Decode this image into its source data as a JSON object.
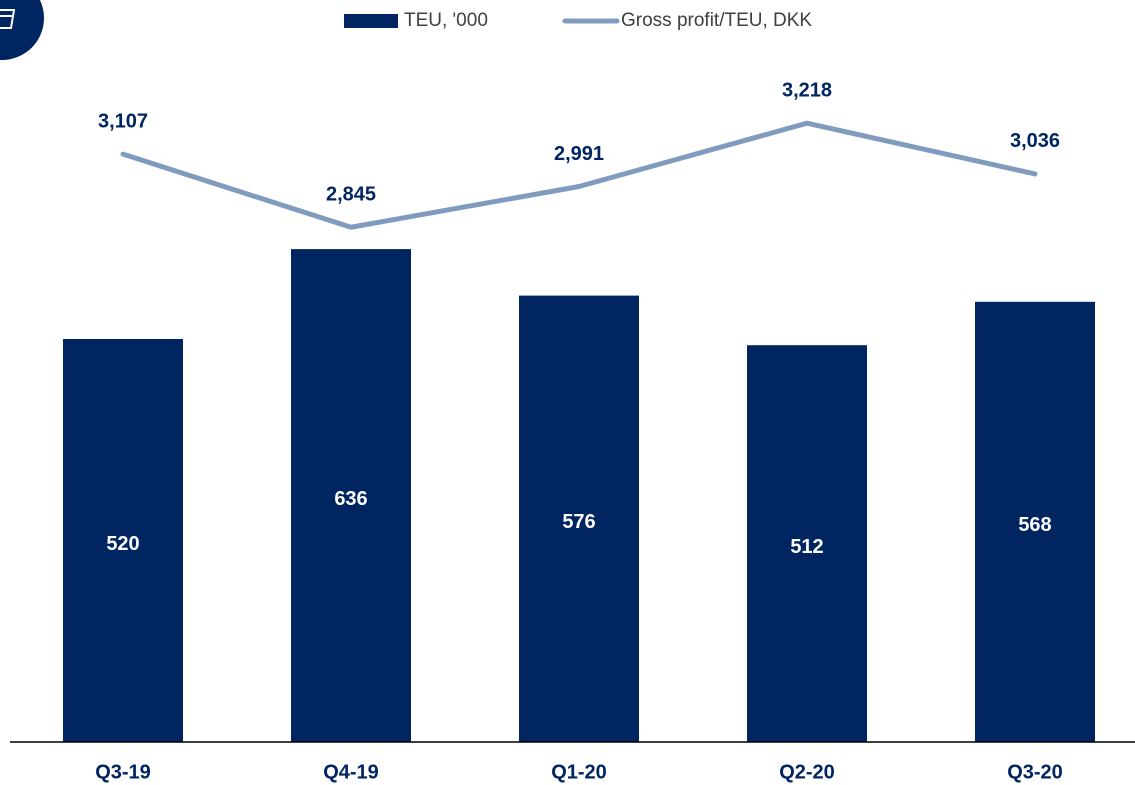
{
  "chart_data": {
    "type": "bar_line",
    "categories": [
      "Q3-19",
      "Q4-19",
      "Q1-20",
      "Q2-20",
      "Q3-20"
    ],
    "series": [
      {
        "name": "TEU, '000",
        "type": "bar",
        "color": "#002560",
        "values": [
          520,
          636,
          576,
          512,
          568
        ]
      },
      {
        "name": "Gross profit/TEU, DKK",
        "type": "line",
        "axis": "y2",
        "color": "#7f9cbf",
        "values": [
          3107,
          2845,
          2991,
          3218,
          3036
        ],
        "value_labels": [
          "3,107",
          "2,845",
          "2,991",
          "3,218",
          "3,036"
        ]
      }
    ],
    "ylim": [
      0,
      900
    ],
    "y2lim": [
      1000,
      3500
    ],
    "grid": false
  }
}
